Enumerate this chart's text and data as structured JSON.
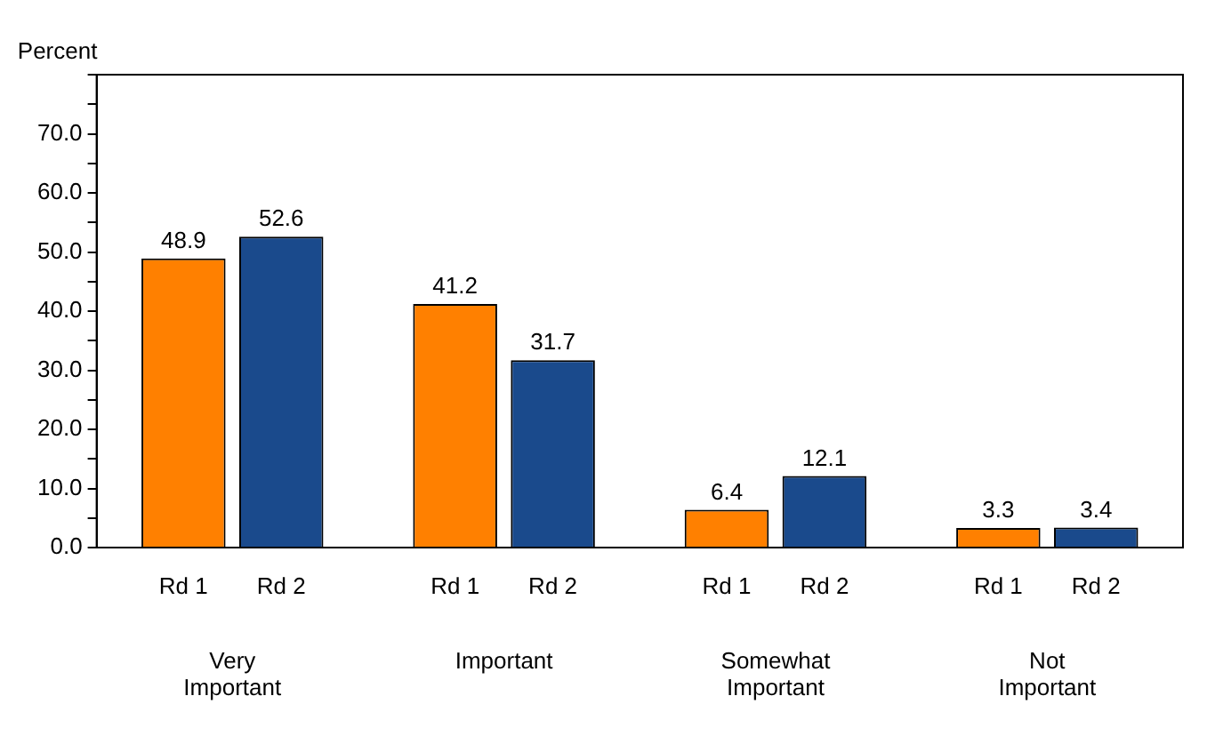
{
  "chart_data": {
    "type": "bar",
    "ylabel": "Percent",
    "categories": [
      "Very Important",
      "Important",
      "Somewhat Important",
      "Not Important"
    ],
    "series": [
      {
        "name": "Rd 1",
        "color": "#ff8000",
        "values": [
          48.9,
          41.2,
          6.4,
          3.3
        ]
      },
      {
        "name": "Rd 2",
        "color": "#1a4a8c",
        "values": [
          52.6,
          31.7,
          12.1,
          3.4
        ]
      }
    ],
    "ylim": [
      0,
      80
    ],
    "yticks": [
      {
        "value": 0,
        "label": "0.0"
      },
      {
        "value": 5,
        "label": null
      },
      {
        "value": 10,
        "label": "10.0"
      },
      {
        "value": 15,
        "label": null
      },
      {
        "value": 20,
        "label": "20.0"
      },
      {
        "value": 25,
        "label": null
      },
      {
        "value": 30,
        "label": "30.0"
      },
      {
        "value": 35,
        "label": null
      },
      {
        "value": 40,
        "label": "40.0"
      },
      {
        "value": 45,
        "label": null
      },
      {
        "value": 50,
        "label": "50.0"
      },
      {
        "value": 55,
        "label": null
      },
      {
        "value": 60,
        "label": "60.0"
      },
      {
        "value": 65,
        "label": null
      },
      {
        "value": 70,
        "label": "70.0"
      },
      {
        "value": 75,
        "label": null
      },
      {
        "value": 80,
        "label": null
      }
    ],
    "data_labels": true,
    "grid": false,
    "legend": false
  }
}
